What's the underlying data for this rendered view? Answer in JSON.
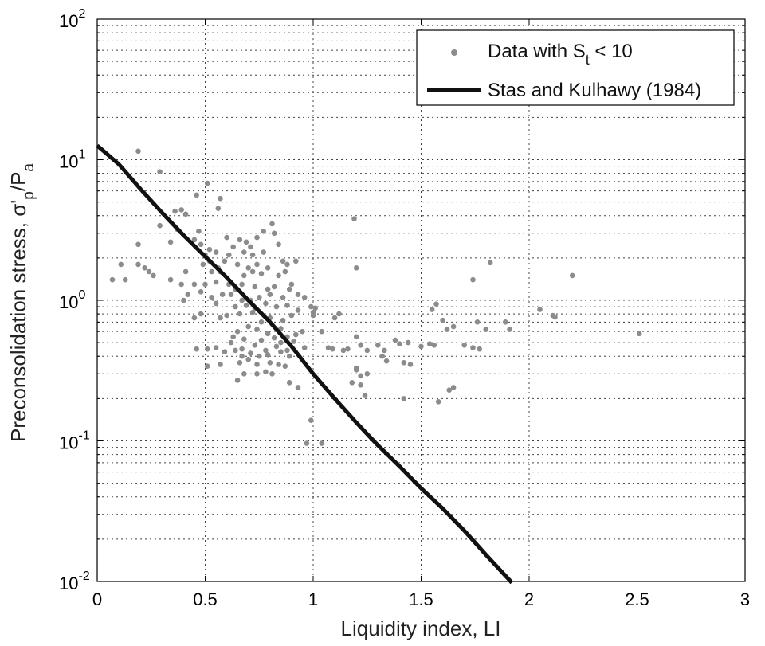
{
  "chart_data": {
    "type": "scatter",
    "title": "",
    "xlabel": "Liquidity index, LI",
    "ylabel": "Preconsolidation stress, σ'p/Pa",
    "ylabel_parts": {
      "main": "Preconsolidation stress, σ'",
      "sub1": "p",
      "mid": "/P",
      "sub2": "a"
    },
    "xlim": [
      0,
      3
    ],
    "ylim": [
      0.01,
      100
    ],
    "yscale": "log",
    "grid": true,
    "legend_position": "top-right",
    "x_ticks": [
      "0",
      "0.5",
      "1",
      "1.5",
      "2",
      "2.5",
      "3"
    ],
    "y_ticks": [
      {
        "base": "10",
        "exp": "-2"
      },
      {
        "base": "10",
        "exp": "-1"
      },
      {
        "base": "10",
        "exp": "0"
      },
      {
        "base": "10",
        "exp": "1"
      },
      {
        "base": "10",
        "exp": "2"
      }
    ],
    "series": [
      {
        "name": "Data with St < 10",
        "legend_parts": {
          "main": "Data with S",
          "sub": "t",
          "tail": " < 10"
        },
        "kind": "scatter",
        "color": "#8c8c8c",
        "points": [
          [
            0.19,
            11.5
          ],
          [
            0.29,
            8.2
          ],
          [
            0.51,
            6.8
          ],
          [
            0.46,
            5.6
          ],
          [
            0.57,
            5.3
          ],
          [
            0.56,
            4.5
          ],
          [
            0.36,
            4.3
          ],
          [
            0.39,
            4.4
          ],
          [
            0.41,
            4.1
          ],
          [
            0.29,
            3.4
          ],
          [
            0.37,
            3.2
          ],
          [
            0.47,
            3.1
          ],
          [
            0.45,
            2.7
          ],
          [
            0.34,
            2.6
          ],
          [
            0.19,
            2.5
          ],
          [
            0.48,
            2.5
          ],
          [
            0.52,
            2.3
          ],
          [
            0.55,
            2.2
          ],
          [
            0.6,
            2.8
          ],
          [
            0.61,
            2.1
          ],
          [
            0.63,
            2.4
          ],
          [
            0.66,
            2.7
          ],
          [
            0.68,
            2.2
          ],
          [
            0.69,
            2.6
          ],
          [
            0.71,
            2.4
          ],
          [
            0.74,
            2.8
          ],
          [
            0.77,
            3.1
          ],
          [
            0.81,
            3.5
          ],
          [
            0.82,
            3.0
          ],
          [
            0.84,
            2.5
          ],
          [
            0.72,
            2.1
          ],
          [
            0.77,
            2.2
          ],
          [
            0.5,
            2.1
          ],
          [
            0.49,
            1.8
          ],
          [
            0.52,
            1.9
          ],
          [
            0.56,
            1.7
          ],
          [
            0.59,
            1.9
          ],
          [
            0.65,
            1.8
          ],
          [
            0.7,
            1.7
          ],
          [
            0.74,
            1.8
          ],
          [
            0.79,
            1.7
          ],
          [
            0.86,
            1.9
          ],
          [
            0.88,
            1.8
          ],
          [
            0.92,
            1.9
          ],
          [
            0.11,
            1.8
          ],
          [
            0.19,
            1.8
          ],
          [
            0.22,
            1.7
          ],
          [
            0.26,
            1.5
          ],
          [
            0.24,
            1.6
          ],
          [
            0.41,
            1.6
          ],
          [
            0.53,
            1.6
          ],
          [
            0.57,
            1.6
          ],
          [
            0.68,
            1.5
          ],
          [
            0.72,
            1.6
          ],
          [
            0.76,
            1.55
          ],
          [
            0.84,
            1.5
          ],
          [
            0.87,
            1.6
          ],
          [
            0.07,
            1.4
          ],
          [
            0.13,
            1.4
          ],
          [
            0.34,
            1.4
          ],
          [
            0.39,
            1.3
          ],
          [
            0.45,
            1.3
          ],
          [
            0.5,
            1.3
          ],
          [
            0.55,
            1.35
          ],
          [
            0.61,
            1.3
          ],
          [
            0.64,
            1.2
          ],
          [
            0.67,
            1.3
          ],
          [
            0.73,
            1.25
          ],
          [
            0.79,
            1.2
          ],
          [
            0.82,
            1.25
          ],
          [
            0.89,
            1.2
          ],
          [
            0.9,
            1.3
          ],
          [
            0.42,
            1.1
          ],
          [
            0.48,
            1.15
          ],
          [
            0.53,
            1.05
          ],
          [
            0.58,
            1.1
          ],
          [
            0.62,
            1.1
          ],
          [
            0.67,
            1.0
          ],
          [
            0.71,
            1.0
          ],
          [
            0.75,
            1.05
          ],
          [
            0.8,
            1.1
          ],
          [
            0.86,
            1.05
          ],
          [
            0.93,
            1.1
          ],
          [
            0.96,
            1.05
          ],
          [
            0.4,
            1.0
          ],
          [
            0.55,
            0.95
          ],
          [
            0.64,
            0.9
          ],
          [
            0.69,
            0.92
          ],
          [
            0.73,
            0.88
          ],
          [
            0.78,
            0.95
          ],
          [
            0.83,
            0.9
          ],
          [
            0.88,
            0.92
          ],
          [
            0.93,
            0.85
          ],
          [
            0.99,
            0.9
          ],
          [
            1.0,
            0.82
          ],
          [
            0.48,
            0.8
          ],
          [
            0.57,
            0.75
          ],
          [
            0.6,
            0.78
          ],
          [
            0.66,
            0.8
          ],
          [
            0.72,
            0.82
          ],
          [
            0.76,
            0.7
          ],
          [
            0.8,
            0.75
          ],
          [
            0.86,
            0.72
          ],
          [
            0.9,
            0.78
          ],
          [
            0.45,
            0.75
          ],
          [
            1.1,
            0.75
          ],
          [
            0.65,
            0.6
          ],
          [
            0.7,
            0.65
          ],
          [
            0.74,
            0.62
          ],
          [
            0.79,
            0.58
          ],
          [
            0.85,
            0.63
          ],
          [
            0.88,
            0.55
          ],
          [
            0.92,
            0.57
          ],
          [
            0.95,
            0.6
          ],
          [
            0.63,
            0.55
          ],
          [
            0.68,
            0.53
          ],
          [
            0.76,
            0.52
          ],
          [
            0.82,
            0.54
          ],
          [
            0.85,
            0.5
          ],
          [
            0.91,
            0.51
          ],
          [
            0.62,
            0.5
          ],
          [
            0.67,
            0.45
          ],
          [
            0.73,
            0.48
          ],
          [
            0.78,
            0.44
          ],
          [
            0.83,
            0.47
          ],
          [
            0.88,
            0.44
          ],
          [
            0.96,
            0.46
          ],
          [
            0.46,
            0.45
          ],
          [
            0.51,
            0.45
          ],
          [
            0.55,
            0.46
          ],
          [
            0.59,
            0.43
          ],
          [
            0.64,
            0.44
          ],
          [
            0.67,
            0.4
          ],
          [
            0.71,
            0.42
          ],
          [
            0.75,
            0.4
          ],
          [
            0.79,
            0.41
          ],
          [
            0.85,
            0.43
          ],
          [
            0.89,
            0.4
          ],
          [
            0.66,
            0.36
          ],
          [
            0.7,
            0.38
          ],
          [
            0.74,
            0.35
          ],
          [
            0.8,
            0.36
          ],
          [
            0.84,
            0.35
          ],
          [
            0.87,
            0.34
          ],
          [
            0.51,
            0.34
          ],
          [
            0.57,
            0.35
          ],
          [
            0.68,
            0.3
          ],
          [
            0.74,
            0.3
          ],
          [
            0.78,
            0.31
          ],
          [
            0.81,
            0.3
          ],
          [
            0.65,
            0.27
          ],
          [
            0.89,
            0.26
          ],
          [
            0.93,
            0.24
          ],
          [
            0.99,
            0.14
          ],
          [
            0.97,
            0.096
          ],
          [
            1.04,
            0.096
          ],
          [
            1.19,
            3.8
          ],
          [
            1.2,
            1.7
          ],
          [
            1.01,
            0.88
          ],
          [
            1.0,
            0.78
          ],
          [
            1.04,
            0.6
          ],
          [
            1.07,
            0.46
          ],
          [
            1.09,
            0.45
          ],
          [
            1.14,
            0.44
          ],
          [
            1.16,
            0.45
          ],
          [
            1.12,
            0.8
          ],
          [
            1.2,
            0.55
          ],
          [
            1.22,
            0.48
          ],
          [
            1.25,
            0.44
          ],
          [
            1.3,
            0.48
          ],
          [
            1.33,
            0.44
          ],
          [
            1.38,
            0.52
          ],
          [
            1.4,
            0.49
          ],
          [
            1.44,
            0.5
          ],
          [
            1.32,
            0.4
          ],
          [
            1.34,
            0.37
          ],
          [
            1.42,
            0.36
          ],
          [
            1.45,
            0.35
          ],
          [
            1.2,
            0.32
          ],
          [
            1.22,
            0.29
          ],
          [
            1.25,
            0.3
          ],
          [
            1.18,
            0.26
          ],
          [
            1.22,
            0.25
          ],
          [
            1.24,
            0.21
          ],
          [
            1.42,
            0.2
          ],
          [
            1.2,
            0.33
          ],
          [
            1.5,
            0.47
          ],
          [
            1.54,
            0.49
          ],
          [
            1.56,
            0.48
          ],
          [
            1.55,
            0.86
          ],
          [
            1.57,
            0.94
          ],
          [
            1.6,
            0.72
          ],
          [
            1.62,
            0.62
          ],
          [
            1.65,
            0.65
          ],
          [
            1.7,
            0.48
          ],
          [
            1.74,
            0.46
          ],
          [
            1.77,
            0.45
          ],
          [
            1.8,
            0.62
          ],
          [
            1.76,
            0.7
          ],
          [
            1.74,
            1.4
          ],
          [
            1.82,
            1.85
          ],
          [
            1.89,
            0.7
          ],
          [
            1.91,
            0.62
          ],
          [
            1.58,
            0.19
          ],
          [
            1.63,
            0.23
          ],
          [
            1.65,
            0.24
          ],
          [
            2.05,
            0.86
          ],
          [
            2.12,
            0.76
          ],
          [
            2.11,
            0.78
          ],
          [
            2.2,
            1.5
          ],
          [
            2.51,
            0.58
          ]
        ]
      },
      {
        "name": "Stas and Kulhawy (1984)",
        "kind": "line",
        "color": "#111111",
        "points": [
          [
            0.0,
            12.6
          ],
          [
            0.1,
            9.3
          ],
          [
            0.2,
            6.2
          ],
          [
            0.3,
            4.2
          ],
          [
            0.4,
            2.9
          ],
          [
            0.5,
            2.05
          ],
          [
            0.6,
            1.45
          ],
          [
            0.7,
            1.0
          ],
          [
            0.8,
            0.7
          ],
          [
            0.9,
            0.47
          ],
          [
            1.0,
            0.3
          ],
          [
            1.1,
            0.2
          ],
          [
            1.2,
            0.135
          ],
          [
            1.3,
            0.093
          ],
          [
            1.4,
            0.066
          ],
          [
            1.5,
            0.046
          ],
          [
            1.6,
            0.033
          ],
          [
            1.7,
            0.023
          ],
          [
            1.8,
            0.0155
          ],
          [
            1.92,
            0.0098
          ]
        ]
      }
    ]
  }
}
